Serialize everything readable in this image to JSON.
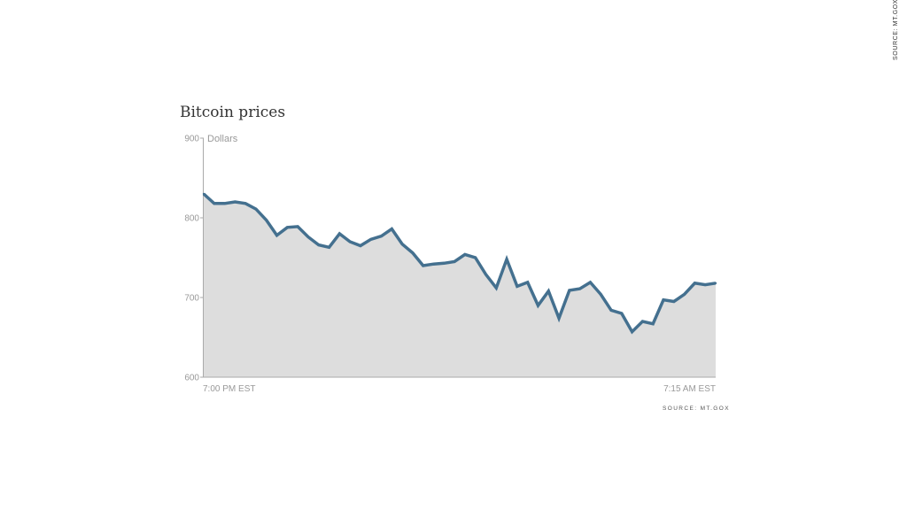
{
  "corner_source": "SOURCE: MT.GOX",
  "chart_data": {
    "type": "area",
    "title": "Bitcoin prices",
    "ylabel": "Dollars",
    "xlabel": "",
    "ylim": [
      600,
      900
    ],
    "y_ticks": [
      "900",
      "800",
      "700",
      "600"
    ],
    "x_tick_labels": [
      "7:00 PM EST",
      "7:15 AM EST"
    ],
    "source": "SOURCE: MT.GOX",
    "grid": false,
    "legend": "none",
    "colors": {
      "line": "#44708f",
      "fill": "#dddddd",
      "axis": "#aaaaaa"
    },
    "series": [
      {
        "values": [
          830,
          818,
          818,
          820,
          818,
          811,
          797,
          778,
          788,
          789,
          776,
          766,
          763,
          780,
          770,
          765,
          773,
          777,
          786,
          767,
          756,
          740,
          742,
          743,
          745,
          754,
          750,
          729,
          712,
          748,
          714,
          719,
          690,
          708,
          674,
          709,
          711,
          719,
          704,
          684,
          680,
          657,
          670,
          667,
          697,
          695,
          704,
          718,
          716,
          718
        ]
      }
    ]
  }
}
